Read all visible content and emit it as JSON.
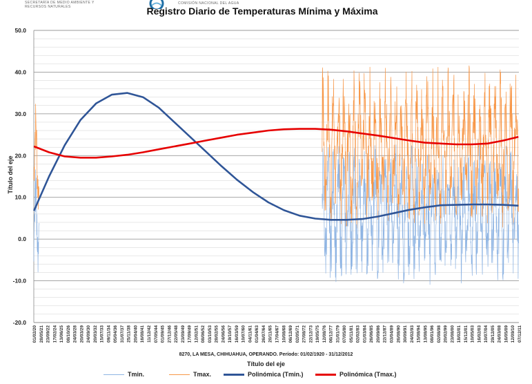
{
  "header": {
    "logo_left": "SECRETARÍA DE MEDIO AMBIENTE Y RECURSOS NATURALES",
    "logo_right": "COMISIÓN NACIONAL DEL AGUA"
  },
  "colors": {
    "tmin": "#8eb4e3",
    "tmax": "#f79646",
    "poly_tmin": "#2f5597",
    "poly_tmax": "#e60000",
    "grid": "#d0d0d0"
  },
  "chart_data": {
    "type": "line",
    "title": "Registro Diario de Temperaturas Mínima y Máxima",
    "subtitle": "8270, LA MESA, CHIHUAHUA, OPERANDO. Período: 01/02/1920 - 31/12/2012",
    "xlabel": "Título del eje",
    "ylabel": "Título del eje",
    "ylim": [
      -20,
      50
    ],
    "yticks": [
      "50.0",
      "40.0",
      "30.0",
      "20.0",
      "10.0",
      "0.0",
      "-10.0",
      "-20.0"
    ],
    "x_tick_labels": [
      "01/02/20",
      "28/05/21",
      "23/09/22",
      "17/02/24",
      "13/06/25",
      "08/10/26",
      "24/03/28",
      "20/03/29",
      "24/09/30",
      "20/03/32",
      "15/07/33",
      "09/11/34",
      "05/04/36",
      "31/07/37",
      "25/11/38",
      "20/04/40",
      "16/08/41",
      "11/12/42",
      "07/05/44",
      "01/09/45",
      "27/12/46",
      "22/05/48",
      "23/09/49",
      "17/09/49",
      "12/02/51",
      "08/06/52",
      "03/10/53",
      "28/02/55",
      "24/06/56",
      "19/10/57",
      "16/03/59",
      "10/07/60",
      "04/11/61",
      "01/04/63",
      "26/07/64",
      "20/11/65",
      "17/04/67",
      "10/08/68",
      "06/12/69",
      "02/05/71",
      "27/08/72",
      "22/12/73",
      "19/05/75",
      "12/08/76",
      "06/12/77",
      "31/01/79",
      "07/05/80",
      "05/11/81",
      "02/02/83",
      "01/03/84",
      "26/06/85",
      "20/09/86",
      "22/12/87",
      "03/04/89",
      "26/08/90",
      "30/09/91",
      "24/02/93",
      "15/08/94",
      "13/08/95",
      "08/01/96",
      "02/08/98",
      "20/02/99",
      "23/08/00",
      "18/02/01",
      "15/12/01",
      "10/05/03",
      "16/02/03",
      "10/07/04",
      "29/12/05",
      "24/03/08",
      "16/05/09",
      "12/09/10",
      "07/12/11"
    ],
    "series": [
      {
        "name": "Tmin.",
        "kind": "daily",
        "segments": [
          {
            "x_range": [
              1920.08,
              1921.1
            ],
            "low": -10,
            "high": 18
          },
          {
            "x_range": [
              1975.3,
              2012.99
            ],
            "low": -11,
            "high": 23
          }
        ]
      },
      {
        "name": "Tmax.",
        "kind": "daily",
        "segments": [
          {
            "x_range": [
              1920.08,
              1921.1
            ],
            "low": 5,
            "high": 34
          },
          {
            "x_range": [
              1975.3,
              2012.99
            ],
            "low": 2,
            "high": 42
          }
        ]
      },
      {
        "name": "Polinómica (Tmin.)",
        "kind": "trend",
        "x": [
          1920.1,
          1923,
          1926,
          1929,
          1932,
          1935,
          1938,
          1941,
          1944,
          1947,
          1950,
          1953,
          1956,
          1959,
          1962,
          1965,
          1968,
          1971,
          1974,
          1977,
          1980,
          1983,
          1986,
          1989,
          1992,
          1995,
          1998,
          2001,
          2004,
          2007,
          2010,
          2012.9
        ],
        "y": [
          6.8,
          15.0,
          22.5,
          28.5,
          32.5,
          34.6,
          35.0,
          34.0,
          31.5,
          28.0,
          24.5,
          21.0,
          17.5,
          14.2,
          11.3,
          8.8,
          6.9,
          5.6,
          4.9,
          4.6,
          4.6,
          4.8,
          5.4,
          6.2,
          7.0,
          7.6,
          8.1,
          8.2,
          8.3,
          8.3,
          8.2,
          8.0
        ]
      },
      {
        "name": "Polinómica (Tmax.)",
        "kind": "trend",
        "x": [
          1920.1,
          1923,
          1926,
          1929,
          1932,
          1935,
          1938,
          1941,
          1944,
          1947,
          1950,
          1953,
          1956,
          1959,
          1962,
          1965,
          1968,
          1971,
          1974,
          1977,
          1980,
          1983,
          1986,
          1989,
          1992,
          1995,
          1998,
          2001,
          2004,
          2007,
          2010,
          2012.9
        ],
        "y": [
          22.2,
          20.8,
          19.8,
          19.5,
          19.5,
          19.8,
          20.2,
          20.8,
          21.5,
          22.2,
          22.9,
          23.6,
          24.3,
          25.0,
          25.5,
          26.0,
          26.3,
          26.4,
          26.4,
          26.2,
          25.8,
          25.3,
          24.8,
          24.2,
          23.6,
          23.1,
          22.9,
          22.7,
          22.7,
          22.9,
          23.6,
          24.5
        ]
      }
    ]
  }
}
